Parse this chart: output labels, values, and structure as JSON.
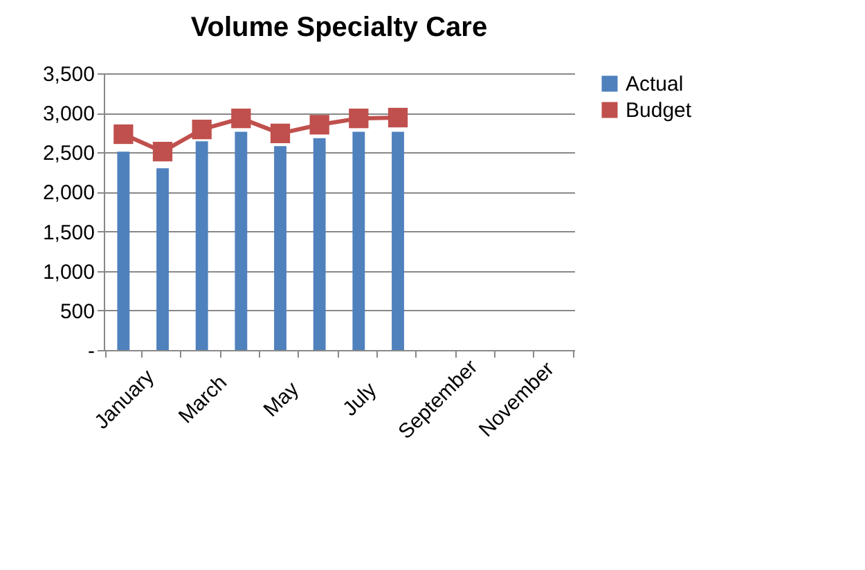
{
  "chart_data": {
    "type": "bar",
    "title": "Volume Specialty Care",
    "categories": [
      "January",
      null,
      "March",
      null,
      "May",
      null,
      "July",
      null,
      "September",
      null,
      "November",
      null
    ],
    "series": [
      {
        "name": "Actual",
        "color": "#4f81bd",
        "values": [
          2510,
          2300,
          2640,
          2760,
          2580,
          2680,
          2760,
          2760,
          null,
          null,
          null,
          null
        ]
      },
      {
        "name": "Budget",
        "type": "line",
        "color": "#c0504d",
        "marker": "square",
        "values": [
          2730,
          2510,
          2790,
          2930,
          2740,
          2850,
          2930,
          2940,
          null,
          null,
          null,
          null
        ]
      }
    ],
    "ylim": [
      0,
      3500
    ],
    "yticks": [
      {
        "value": 0,
        "label": "-"
      },
      {
        "value": 500,
        "label": "500"
      },
      {
        "value": 1000,
        "label": "1,000"
      },
      {
        "value": 1500,
        "label": "1,500"
      },
      {
        "value": 2000,
        "label": "2,000"
      },
      {
        "value": 2500,
        "label": "2,500"
      },
      {
        "value": 3000,
        "label": "3,000"
      },
      {
        "value": 3500,
        "label": "3,500"
      }
    ],
    "grid": "y",
    "legend": "right"
  }
}
